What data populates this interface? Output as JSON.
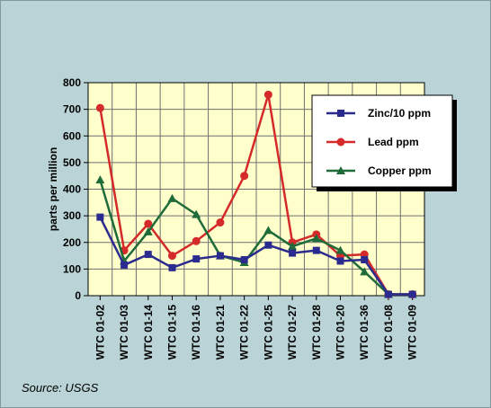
{
  "chart_data": {
    "type": "line",
    "title": "",
    "xlabel": "",
    "ylabel": "parts per million",
    "ylim": [
      0,
      800
    ],
    "yticks": [
      0,
      100,
      200,
      300,
      400,
      500,
      600,
      700,
      800
    ],
    "categories": [
      "WTC 01-02",
      "WTC 01-03",
      "WTC 01-14",
      "WTC 01-15",
      "WTC 01-16",
      "WTC 01-21",
      "WTC 01-22",
      "WTC 01-25",
      "WTC 01-27",
      "WTC 01-28",
      "WTC 01-20",
      "WTC 01-36",
      "WTC 01-08",
      "WTC 01-09"
    ],
    "grid": true,
    "legend_position": "top-right",
    "plot_background": "#ffffcc",
    "series": [
      {
        "name": "Zinc/10 ppm",
        "marker": "square",
        "color": "#2b2b8f",
        "values": [
          295,
          115,
          155,
          105,
          138,
          150,
          135,
          190,
          160,
          170,
          130,
          135,
          5,
          5
        ]
      },
      {
        "name": "Lead ppm",
        "marker": "circle",
        "color": "#d42a2a",
        "values": [
          705,
          170,
          270,
          150,
          205,
          275,
          450,
          755,
          200,
          230,
          150,
          155,
          5,
          5
        ]
      },
      {
        "name": "Copper ppm",
        "marker": "triangle",
        "color": "#1f6b3a",
        "values": [
          435,
          130,
          240,
          365,
          305,
          150,
          125,
          245,
          185,
          215,
          170,
          90,
          5,
          5
        ]
      }
    ]
  },
  "source": "Source:  USGS"
}
